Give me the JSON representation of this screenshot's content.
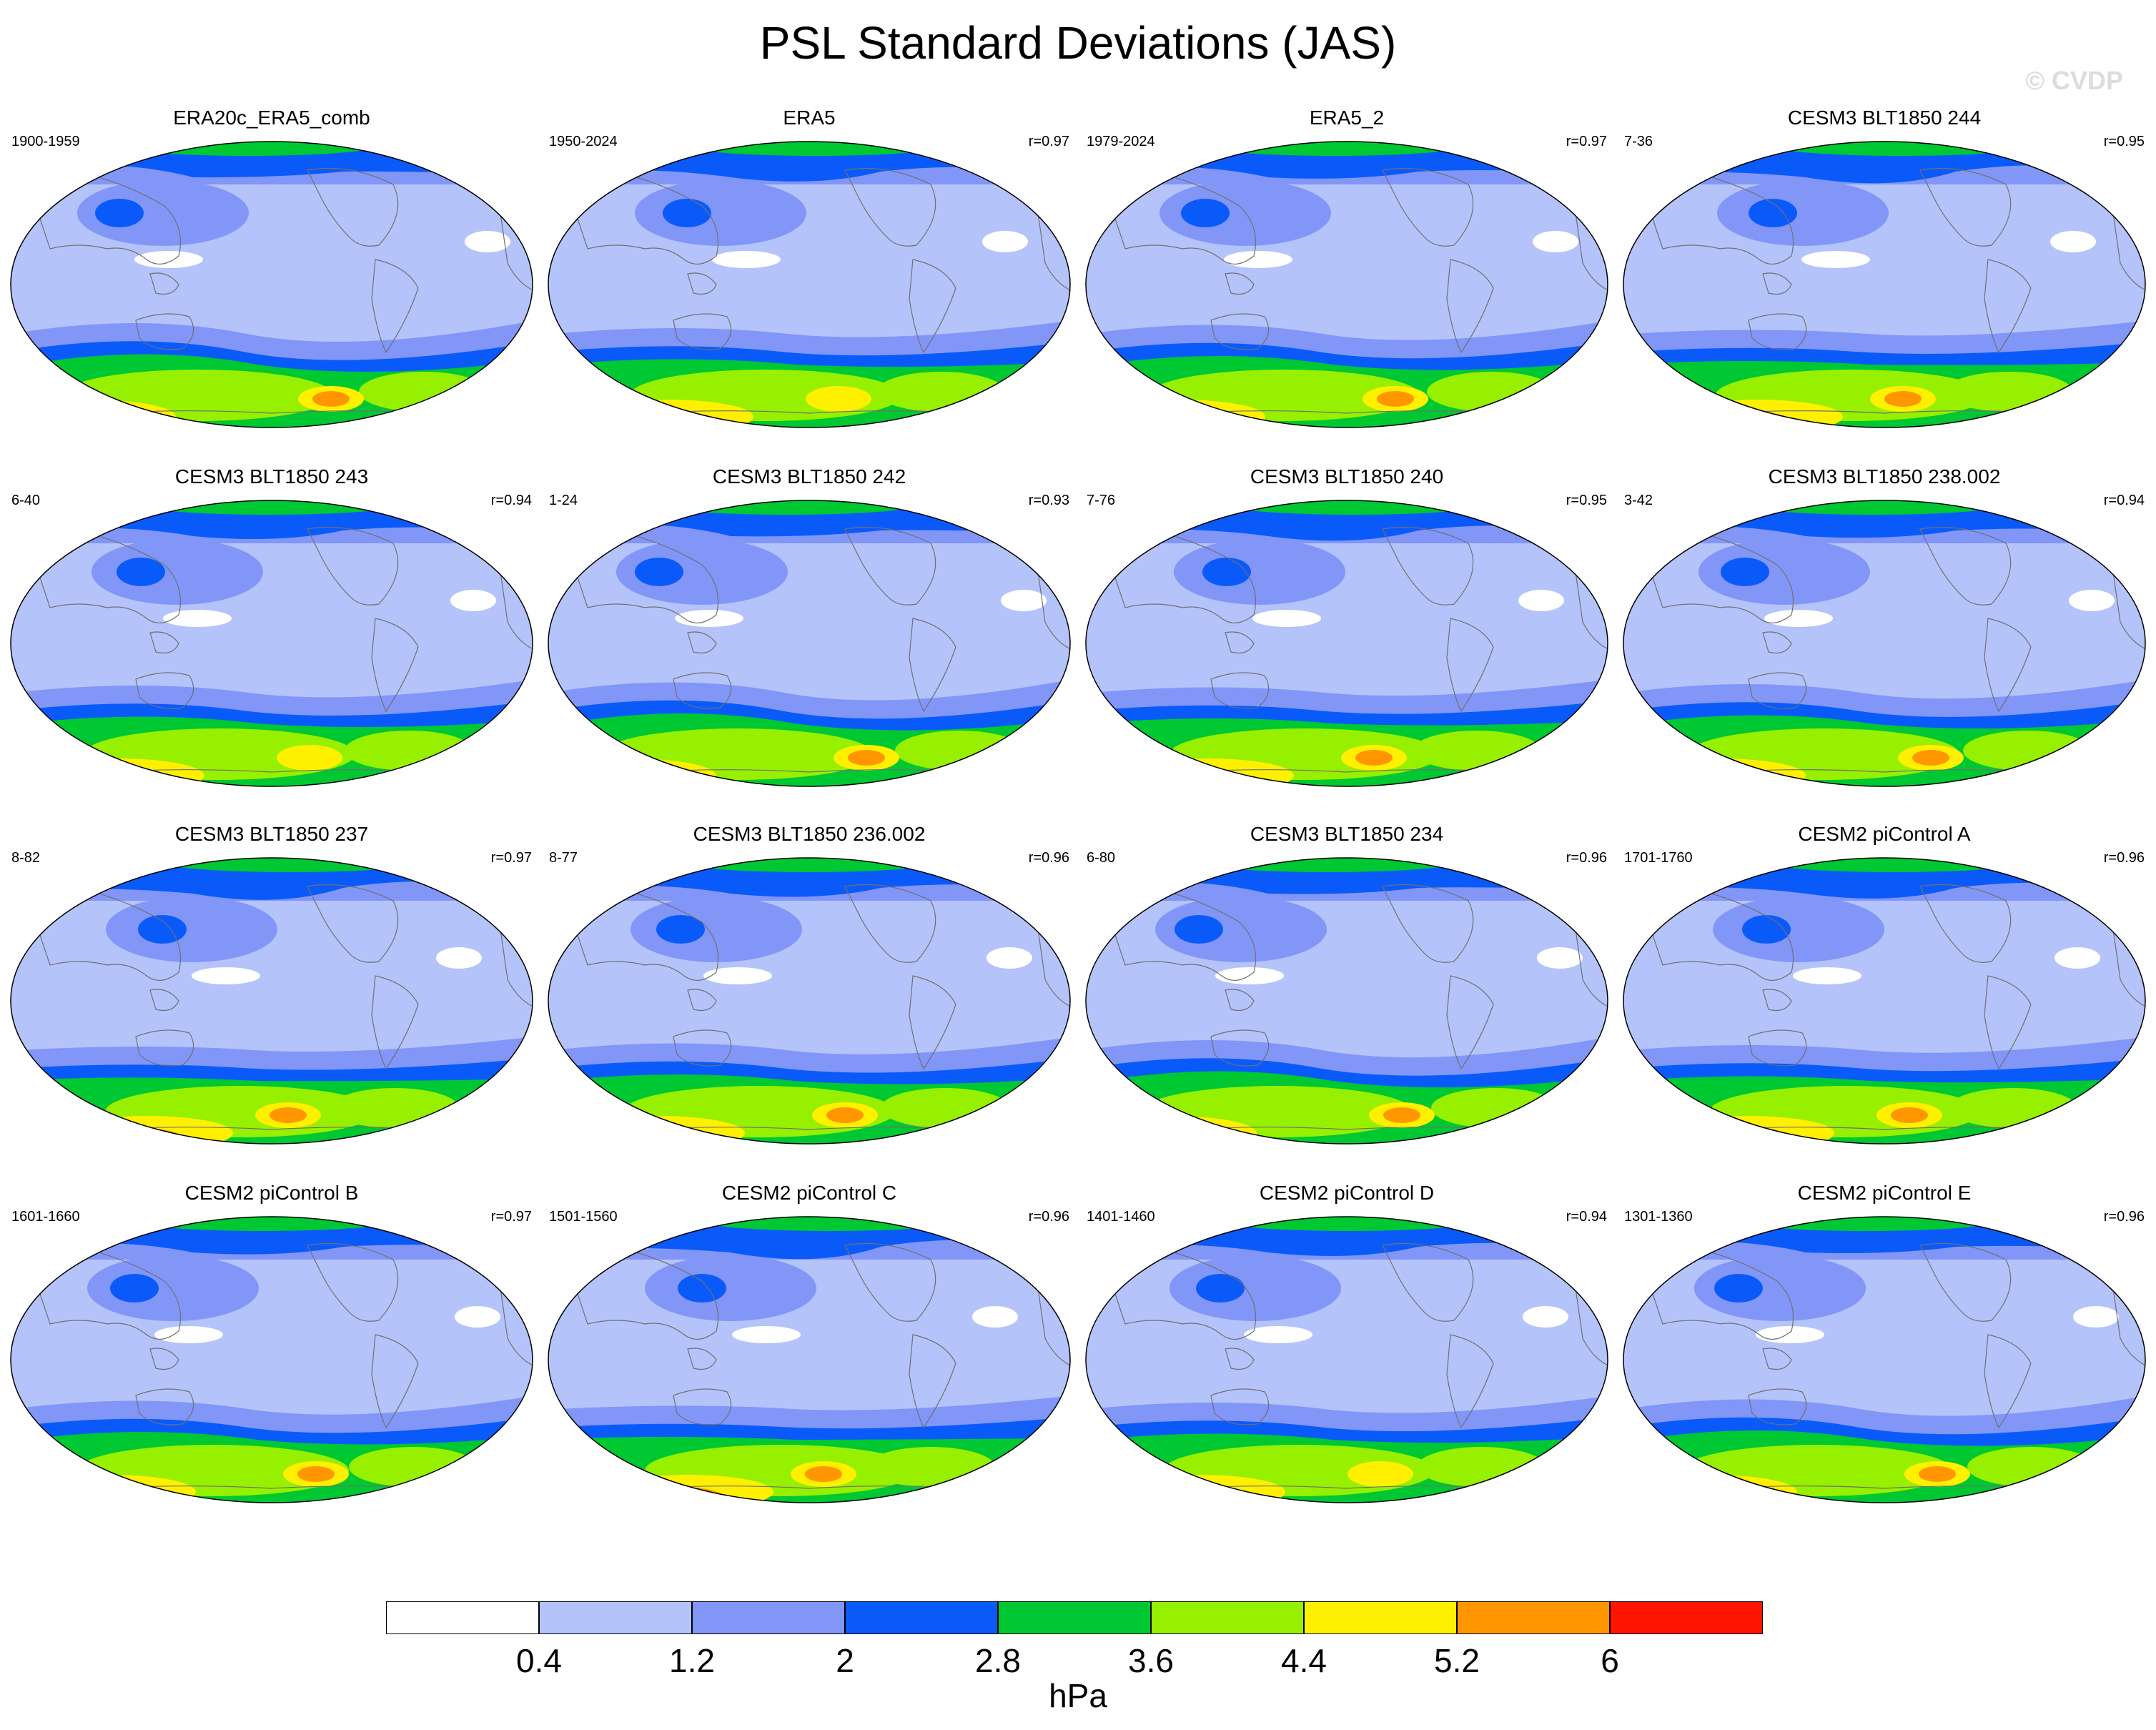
{
  "title": "PSL Standard Deviations (JAS)",
  "watermark": "© CVDP",
  "colorbar": {
    "units": "hPa",
    "colors": [
      "#ffffff",
      "#b4c3fa",
      "#8296f8",
      "#0a5afa",
      "#00c832",
      "#96f000",
      "#fff000",
      "#ff9600",
      "#ff1400"
    ],
    "levels": [
      "0.4",
      "1.2",
      "2",
      "2.8",
      "3.6",
      "4.4",
      "5.2",
      "6"
    ]
  },
  "panels": [
    {
      "name": "ERA20c_ERA5_comb",
      "years": "1900-1959",
      "r": "",
      "intensity": 3
    },
    {
      "name": "ERA5",
      "years": "1950-2024",
      "r": "r=0.97",
      "intensity": 1
    },
    {
      "name": "ERA5_2",
      "years": "1979-2024",
      "r": "r=0.97",
      "intensity": 2
    },
    {
      "name": "CESM3 BLT1850 244",
      "years": "7-36",
      "r": "r=0.95",
      "intensity": 3
    },
    {
      "name": "CESM3 BLT1850 243",
      "years": "6-40",
      "r": "r=0.94",
      "intensity": 1
    },
    {
      "name": "CESM3 BLT1850 242",
      "years": "1-24",
      "r": "r=0.93",
      "intensity": 3
    },
    {
      "name": "CESM3 BLT1850 240",
      "years": "7-76",
      "r": "r=0.95",
      "intensity": 2
    },
    {
      "name": "CESM3 BLT1850 238.002",
      "years": "3-42",
      "r": "r=0.94",
      "intensity": 2
    },
    {
      "name": "CESM3 BLT1850 237",
      "years": "8-82",
      "r": "r=0.97",
      "intensity": 2
    },
    {
      "name": "CESM3 BLT1850 236.002",
      "years": "8-77",
      "r": "r=0.96",
      "intensity": 2
    },
    {
      "name": "CESM3 BLT1850 234",
      "years": "6-80",
      "r": "r=0.96",
      "intensity": 2
    },
    {
      "name": "CESM2 piControl A",
      "years": "1701-1760",
      "r": "r=0.96",
      "intensity": 3
    },
    {
      "name": "CESM2 piControl B",
      "years": "1601-1660",
      "r": "r=0.97",
      "intensity": 3
    },
    {
      "name": "CESM2 piControl C",
      "years": "1501-1560",
      "r": "r=0.96",
      "intensity": 3
    },
    {
      "name": "CESM2 piControl D",
      "years": "1401-1460",
      "r": "r=0.94",
      "intensity": 1
    },
    {
      "name": "CESM2 piControl E",
      "years": "1301-1360",
      "r": "r=0.96",
      "intensity": 2
    }
  ]
}
